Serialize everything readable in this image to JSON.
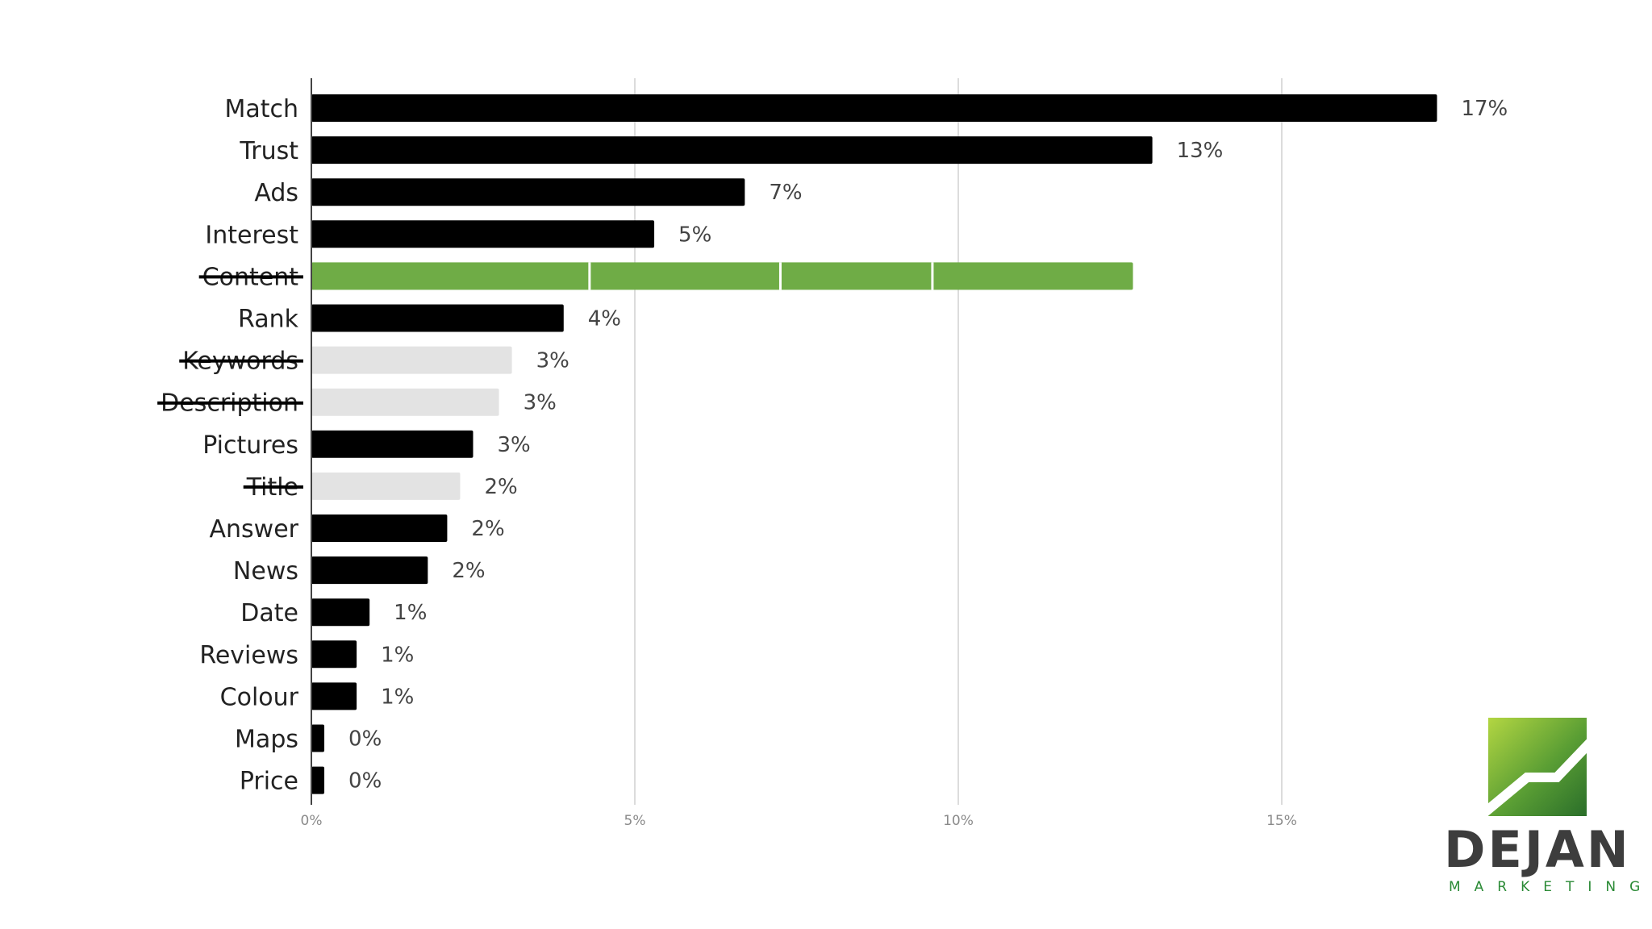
{
  "chart_data": {
    "type": "bar",
    "orientation": "horizontal",
    "title": "",
    "xlabel": "",
    "ylabel": "",
    "xlim": [
      0,
      18
    ],
    "x_ticks": [
      "0%",
      "5%",
      "10%",
      "15%"
    ],
    "x_tick_values": [
      0,
      5,
      10,
      15
    ],
    "grid": true,
    "colors": {
      "default": "#000000",
      "struck": "#e3e3e3",
      "combined": "#6fac46"
    },
    "bars": [
      {
        "category": "Match",
        "value": 17.4,
        "label": "17%",
        "style": "default",
        "struck": false
      },
      {
        "category": "Trust",
        "value": 13.0,
        "label": "13%",
        "style": "default",
        "struck": false
      },
      {
        "category": "Ads",
        "value": 6.7,
        "label": "7%",
        "style": "default",
        "struck": false
      },
      {
        "category": "Interest",
        "value": 5.3,
        "label": "5%",
        "style": "default",
        "struck": false
      },
      {
        "category": "Content",
        "value": 12.7,
        "label": "",
        "style": "combined",
        "struck": true,
        "segment_breaks": [
          4.3,
          7.25,
          9.6
        ]
      },
      {
        "category": "Rank",
        "value": 3.9,
        "label": "4%",
        "style": "default",
        "struck": false
      },
      {
        "category": "Keywords",
        "value": 3.1,
        "label": "3%",
        "style": "struck",
        "struck": true
      },
      {
        "category": "Description",
        "value": 2.9,
        "label": "3%",
        "style": "struck",
        "struck": true
      },
      {
        "category": "Pictures",
        "value": 2.5,
        "label": "3%",
        "style": "default",
        "struck": false
      },
      {
        "category": "Title",
        "value": 2.3,
        "label": "2%",
        "style": "struck",
        "struck": true
      },
      {
        "category": "Answer",
        "value": 2.1,
        "label": "2%",
        "style": "default",
        "struck": false
      },
      {
        "category": "News",
        "value": 1.8,
        "label": "2%",
        "style": "default",
        "struck": false
      },
      {
        "category": "Date",
        "value": 0.9,
        "label": "1%",
        "style": "default",
        "struck": false
      },
      {
        "category": "Reviews",
        "value": 0.7,
        "label": "1%",
        "style": "default",
        "struck": false
      },
      {
        "category": "Colour",
        "value": 0.7,
        "label": "1%",
        "style": "default",
        "struck": false
      },
      {
        "category": "Maps",
        "value": 0.2,
        "label": "0%",
        "style": "default",
        "struck": false
      },
      {
        "category": "Price",
        "value": 0.2,
        "label": "0%",
        "style": "default",
        "struck": false
      }
    ]
  },
  "logo": {
    "word": "DEJAN",
    "sub": "MARKETING",
    "colors": {
      "green_light": "#a6cf3e",
      "green_dark": "#2e7a2e",
      "text": "#3d3d3d"
    }
  }
}
